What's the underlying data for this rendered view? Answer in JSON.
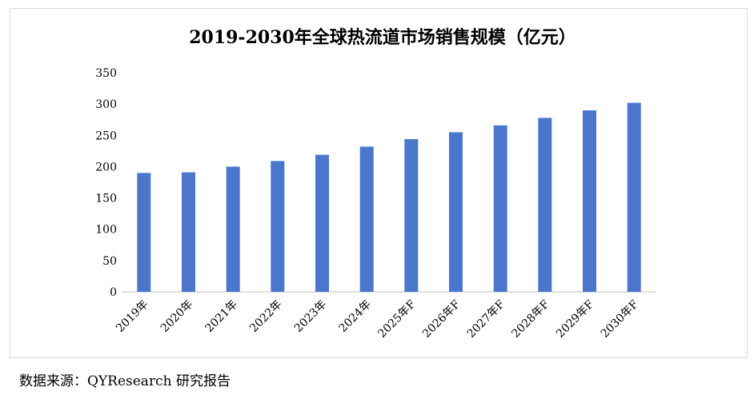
{
  "chart_data": {
    "type": "bar",
    "title": "2019-2030年全球热流道市场销售规模（亿元）",
    "categories": [
      "2019年",
      "2020年",
      "2021年",
      "2022年",
      "2023年",
      "2024年",
      "2025年F",
      "2026年F",
      "2027年F",
      "2028年F",
      "2029年F",
      "2030年F"
    ],
    "values": [
      190,
      191,
      200,
      209,
      219,
      232,
      244,
      255,
      266,
      278,
      290,
      302
    ],
    "ylim": [
      0,
      350
    ],
    "yticks": [
      0,
      50,
      100,
      150,
      200,
      250,
      300,
      350
    ],
    "xlabel": "",
    "ylabel": "",
    "bar_color": "#4a77cc",
    "grid": false,
    "legend": "none"
  },
  "source": "数据来源：QYResearch 研究报告"
}
